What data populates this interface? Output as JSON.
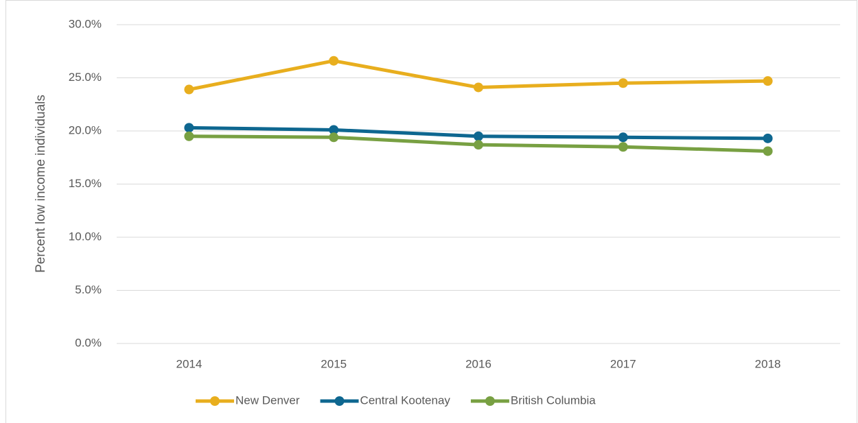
{
  "chart_data": {
    "type": "line",
    "y_label": "Percent low income individuals",
    "categories": [
      "2014",
      "2015",
      "2016",
      "2017",
      "2018"
    ],
    "series": [
      {
        "name": "New Denver",
        "color": "#e8ae1e",
        "values": [
          23.9,
          26.6,
          24.1,
          24.5,
          24.7
        ]
      },
      {
        "name": "Central Kootenay",
        "color": "#0e6790",
        "values": [
          20.3,
          20.1,
          19.5,
          19.4,
          19.3
        ]
      },
      {
        "name": "British Columbia",
        "color": "#78a042",
        "values": [
          19.5,
          19.4,
          18.7,
          18.5,
          18.1
        ]
      }
    ],
    "ylim": [
      0,
      30
    ],
    "yticks": [
      {
        "value": 0,
        "label": "0.0%"
      },
      {
        "value": 5,
        "label": "5.0%"
      },
      {
        "value": 10,
        "label": "10.0%"
      },
      {
        "value": 15,
        "label": "15.0%"
      },
      {
        "value": 20,
        "label": "20.0%"
      },
      {
        "value": 25,
        "label": "25.0%"
      },
      {
        "value": 30,
        "label": "30.0%"
      }
    ],
    "grid": true,
    "legend": "bottom"
  }
}
